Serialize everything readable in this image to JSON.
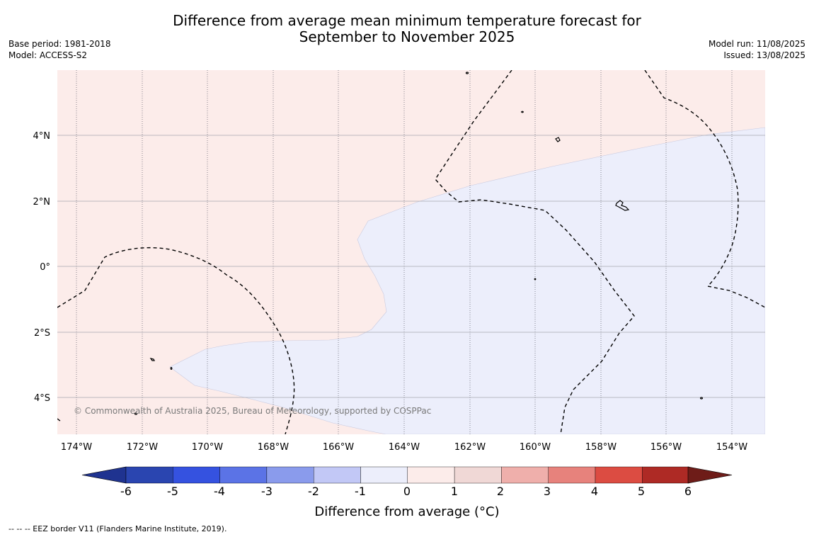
{
  "title": {
    "line1": "Difference from average mean minimum temperature forecast for",
    "line2": "September to November 2025"
  },
  "meta_left": {
    "base_period": "Base period: 1981-2018",
    "model": "Model: ACCESS-S2"
  },
  "meta_right": {
    "model_run": "Model run: 11/08/2025",
    "issued": "Issued: 13/08/2025"
  },
  "map": {
    "lon_labels": [
      "174°W",
      "172°W",
      "170°W",
      "168°W",
      "166°W",
      "164°W",
      "162°W",
      "160°W",
      "158°W",
      "156°W",
      "154°W"
    ],
    "lat_labels": [
      "4°N",
      "2°N",
      "0°",
      "2°S",
      "4°S"
    ],
    "background_category": "0 to 1",
    "overlay_category": "-1 to 0",
    "copyright": "© Commonwealth of Australia 2025, Bureau of Meteorology, supported by COSPPac"
  },
  "colorbar": {
    "title": "Difference from average (°C)",
    "tick_labels": [
      "-6",
      "-5",
      "-4",
      "-3",
      "-2",
      "-1",
      "0",
      "1",
      "2",
      "3",
      "4",
      "5",
      "6"
    ],
    "colors": [
      "#1f3390",
      "#2a45b0",
      "#3552e0",
      "#5b73e6",
      "#8a9bec",
      "#c2c8f6",
      "#eceefb",
      "#fcecea",
      "#f0d8d6",
      "#efafab",
      "#e7827c",
      "#dc4c42",
      "#ae2a25",
      "#6e1c18"
    ],
    "extend_low_color": "#1f3390",
    "extend_high_color": "#6e1c18"
  },
  "footnote": "-- -- -- EEZ border V11 (Flanders Marine Institute, 2019)."
}
